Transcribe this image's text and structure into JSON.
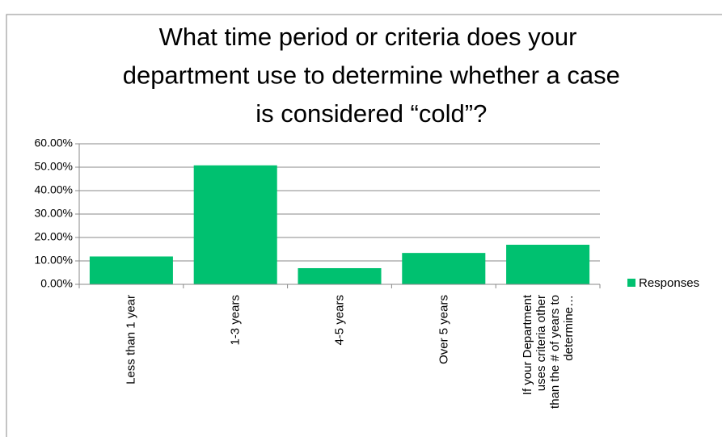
{
  "chart_data": {
    "type": "bar",
    "title": "What time period or criteria does your department use to determine whether a case is considered “cold”?",
    "categories": [
      "Less than 1 year",
      "1-3 years",
      "4-5 years",
      "Over 5 years",
      "If your Department uses criteria other than the # of years to determine…"
    ],
    "series": [
      {
        "name": "Responses",
        "color": "#00c170",
        "values": [
          11.9,
          50.8,
          6.9,
          13.4,
          16.9
        ]
      }
    ],
    "ylim": [
      0,
      60
    ],
    "yticks": [
      {
        "value": 0,
        "label": "0.00%"
      },
      {
        "value": 10,
        "label": "10.00%"
      },
      {
        "value": 20,
        "label": "20.00%"
      },
      {
        "value": 30,
        "label": "30.00%"
      },
      {
        "value": 40,
        "label": "40.00%"
      },
      {
        "value": 50,
        "label": "50.00%"
      },
      {
        "value": 60,
        "label": "60.00%"
      }
    ],
    "grid": true,
    "legend": "right"
  }
}
